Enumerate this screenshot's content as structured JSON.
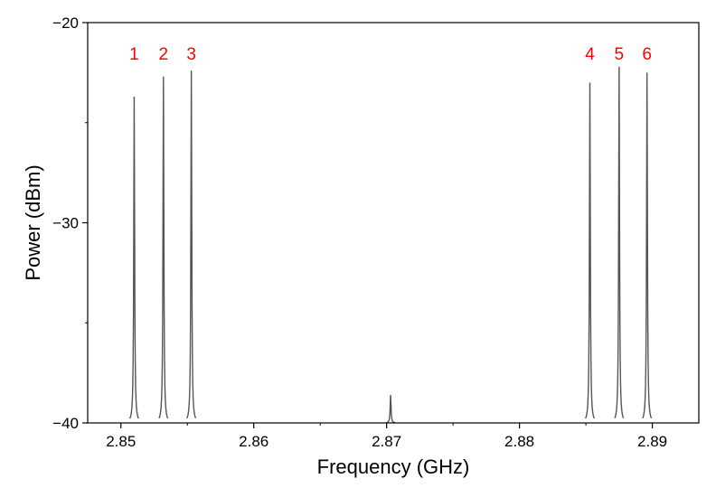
{
  "chart_data": {
    "type": "line",
    "title": "",
    "xlabel": "Frequency (GHz)",
    "ylabel": "Power (dBm)",
    "xlim": [
      2.8475,
      2.8935
    ],
    "ylim": [
      -40,
      -20
    ],
    "x_ticks": [
      2.85,
      2.86,
      2.87,
      2.88,
      2.89
    ],
    "x_tick_labels": [
      "2.85",
      "2.86",
      "2.87",
      "2.88",
      "2.89"
    ],
    "y_ticks": [
      -40,
      -30,
      -20
    ],
    "y_tick_labels": [
      "−40",
      "−30",
      "−20"
    ],
    "grid": false,
    "baseline": -40,
    "series": [
      {
        "line_color": "#555555",
        "peaks": [
          {
            "x": 2.851,
            "y": -23.7,
            "label": "1"
          },
          {
            "x": 2.8532,
            "y": -22.7,
            "label": "2"
          },
          {
            "x": 2.8553,
            "y": -22.4,
            "label": "3"
          },
          {
            "x": 2.8703,
            "y": -38.6,
            "label": ""
          },
          {
            "x": 2.8853,
            "y": -23.0,
            "label": "4"
          },
          {
            "x": 2.8875,
            "y": -22.2,
            "label": "5"
          },
          {
            "x": 2.8896,
            "y": -22.5,
            "label": "6"
          }
        ]
      }
    ],
    "peak_label_color": "#ff0000"
  }
}
